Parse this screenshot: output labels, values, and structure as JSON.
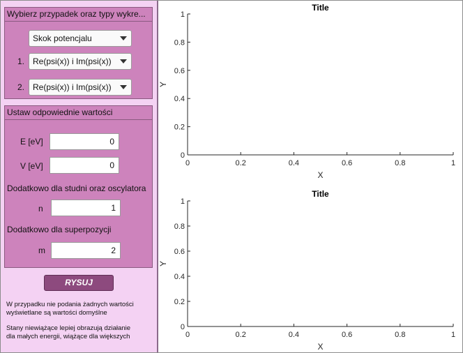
{
  "panel_choose": {
    "title": "Wybierz przypadek oraz typy wykre...",
    "case_select": "Skok potencjalu",
    "plot1_num": "1.",
    "plot1_select": "Re(psi(x)) i Im(psi(x))",
    "plot2_num": "2.",
    "plot2_select": "Re(psi(x)) i Im(psi(x))"
  },
  "panel_values": {
    "title": "Ustaw odpowiednie wartości",
    "e_label": "E [eV]",
    "e_value": "0",
    "v_label": "V [eV]",
    "v_value": "0",
    "extra_wells": "Dodatkowo dla studni oraz oscylatora",
    "n_label": "n",
    "n_value": "1",
    "extra_super": "Dodatkowo dla superpozycji",
    "m_label": "m",
    "m_value": "2"
  },
  "draw_button": "RYSUJ",
  "notes": {
    "default1": "W przypadku nie podania żadnych wartości",
    "default2": "wyświetlane są wartości domyślne",
    "states1": "Stany niewiążące lepiej obrazują działanie",
    "states2": "dla małych energii, wiążące dla większych"
  },
  "chart_data": [
    {
      "type": "line",
      "title": "Title",
      "xlabel": "X",
      "ylabel": "Y",
      "xlim": [
        0,
        1
      ],
      "ylim": [
        0,
        1
      ],
      "xticks": [
        "0",
        "0.2",
        "0.4",
        "0.6",
        "0.8",
        "1"
      ],
      "yticks": [
        "0",
        "0.2",
        "0.4",
        "0.6",
        "0.8",
        "1"
      ],
      "series": []
    },
    {
      "type": "line",
      "title": "Title",
      "xlabel": "X",
      "ylabel": "Y",
      "xlim": [
        0,
        1
      ],
      "ylim": [
        0,
        1
      ],
      "xticks": [
        "0",
        "0.2",
        "0.4",
        "0.6",
        "0.8",
        "1"
      ],
      "yticks": [
        "0",
        "0.2",
        "0.4",
        "0.6",
        "0.8",
        "1"
      ],
      "series": []
    }
  ]
}
